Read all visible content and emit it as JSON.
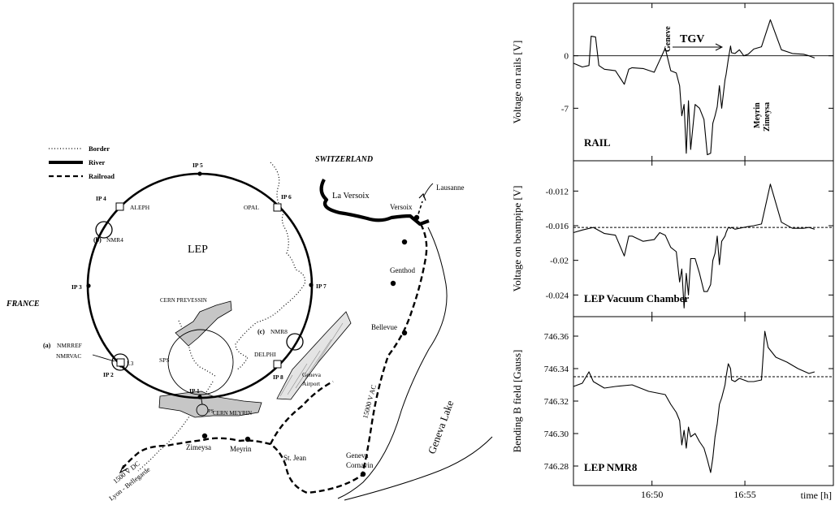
{
  "map": {
    "legend": {
      "border": "Border",
      "river": "River",
      "railroad": "Railroad"
    },
    "countries": {
      "switzerland": "SWITZERLAND",
      "france": "FRANCE"
    },
    "ring_label": "LEP",
    "interaction_points": {
      "ip1": "IP 1",
      "ip2": "IP 2",
      "ip3": "IP 3",
      "ip4": "IP 4",
      "ip5": "IP 5",
      "ip6": "IP 6",
      "ip7": "IP 7",
      "ip8": "IP 8"
    },
    "experiments": {
      "aleph": "ALEPH",
      "opal": "OPAL",
      "delphi": "DELPHI",
      "l3": "L3"
    },
    "nmr": {
      "a_tag": "(a)",
      "nmrref": "NMRREF",
      "nmrvac": "NMRVAC",
      "b_tag": "(b)",
      "nmr4": "NMR4",
      "c_tag": "(c)",
      "nmr8": "NMR8"
    },
    "sites": {
      "sps": "SPS",
      "ps": "PS",
      "cern_prevessin": "CERN PREVESSIN",
      "cern_meyrin": "CERN MEYRIN",
      "geneva_airport_1": "Geneva",
      "geneva_airport_2": "Airport"
    },
    "places": {
      "la_versoix": "La Versoix",
      "versoix": "Versoix",
      "lausanne": "Lausanne",
      "genthod": "Genthod",
      "bellevue": "Bellevue",
      "geneva_cornavin_1": "Geneva",
      "geneva_cornavin_2": "Cornavin",
      "st_jean": "St. Jean",
      "meyrin": "Meyrin",
      "zimeysa": "Zimeysa",
      "geneva_lake": "Geneva Lake"
    },
    "rail_notes": {
      "ac": "15000 V AC",
      "dc": "1500 V DC",
      "lyon": "Lyon - Bellegarde"
    }
  },
  "chart_data": {
    "type": "line",
    "xlabel": "time [h]",
    "x_ticks": [
      "16:50",
      "16:55"
    ],
    "x_range": [
      "16:45.7",
      "16:59.8"
    ],
    "panels": [
      {
        "name": "RAIL",
        "ylabel": "Voltage on rails [V]",
        "y_ticks": [
          "0",
          "-7"
        ],
        "ylim": [
          -14,
          7
        ],
        "reference_line": 0,
        "annotations": {
          "train": "TGV",
          "station_1": "Geneve",
          "station_2": "Meyrin",
          "station_3": "Zimeysa"
        },
        "x": [
          16.762,
          16.77,
          16.776,
          16.778,
          16.782,
          16.785,
          16.79,
          16.8,
          16.808,
          16.812,
          16.815,
          16.825,
          16.835,
          16.84,
          16.845,
          16.85,
          16.855,
          16.858,
          16.86,
          16.862,
          16.864,
          16.866,
          16.868,
          16.872,
          16.876,
          16.88,
          16.883,
          16.886,
          16.888,
          16.89,
          16.892,
          16.894,
          16.896,
          16.899,
          16.9,
          16.902,
          16.904,
          16.905,
          16.908,
          16.912,
          16.916,
          16.92,
          16.925,
          16.932,
          16.94,
          16.95,
          16.96,
          16.97,
          16.975,
          16.98
        ],
        "y": [
          -1.0,
          -1.5,
          -1.3,
          2.6,
          2.5,
          -1.3,
          -1.8,
          -2.0,
          -3.8,
          -1.8,
          -1.6,
          -1.7,
          -2.2,
          -0.6,
          1.0,
          -2.0,
          -2.3,
          -4.0,
          -8.0,
          -6.5,
          -13.0,
          -6.0,
          -12.5,
          -6.5,
          -7.0,
          -8.5,
          -13.2,
          -13.0,
          -9.0,
          -8.0,
          -6.8,
          -4.0,
          -7.0,
          -3.2,
          -2.5,
          -0.5,
          1.3,
          0.4,
          0.3,
          0.8,
          0.0,
          0.2,
          0.9,
          1.2,
          4.8,
          0.8,
          0.3,
          0.2,
          0.0,
          -0.3
        ]
      },
      {
        "name": "LEP Vacuum Chamber",
        "ylabel": "Voltage on beampipe [V]",
        "y_ticks": [
          "-0.012",
          "-0.016",
          "-0.02",
          "-0.024"
        ],
        "ylim": [
          -0.0265,
          -0.0085
        ],
        "reference_line": -0.0162,
        "x": [
          16.762,
          16.77,
          16.78,
          16.79,
          16.8,
          16.808,
          16.812,
          16.815,
          16.825,
          16.835,
          16.84,
          16.845,
          16.85,
          16.855,
          16.858,
          16.86,
          16.862,
          16.864,
          16.866,
          16.868,
          16.872,
          16.876,
          16.88,
          16.883,
          16.886,
          16.888,
          16.89,
          16.892,
          16.894,
          16.896,
          16.899,
          16.9,
          16.902,
          16.904,
          16.905,
          16.908,
          16.912,
          16.916,
          16.92,
          16.925,
          16.932,
          16.94,
          16.95,
          16.96,
          16.97,
          16.975,
          16.98
        ],
        "y": [
          -0.0168,
          -0.0165,
          -0.0162,
          -0.0169,
          -0.0171,
          -0.0195,
          -0.0172,
          -0.0172,
          -0.0178,
          -0.0176,
          -0.0168,
          -0.0171,
          -0.0185,
          -0.019,
          -0.0225,
          -0.021,
          -0.0255,
          -0.0215,
          -0.024,
          -0.0198,
          -0.0198,
          -0.0215,
          -0.0236,
          -0.0236,
          -0.0228,
          -0.02,
          -0.0192,
          -0.0172,
          -0.0205,
          -0.0178,
          -0.0172,
          -0.0168,
          -0.0162,
          -0.0163,
          -0.0162,
          -0.0164,
          -0.0163,
          -0.0162,
          -0.0161,
          -0.016,
          -0.0158,
          -0.0112,
          -0.0156,
          -0.0163,
          -0.0163,
          -0.0162,
          -0.0164
        ]
      },
      {
        "name": "LEP NMR8",
        "ylabel": "Bending B field [Gauss]",
        "y_ticks": [
          "746.36",
          "746.34",
          "746.32",
          "746.30",
          "746.28"
        ],
        "ylim": [
          746.268,
          746.372
        ],
        "reference_line": 746.335,
        "x": [
          16.762,
          16.77,
          16.776,
          16.78,
          16.79,
          16.8,
          16.815,
          16.83,
          16.845,
          16.85,
          16.855,
          16.858,
          16.86,
          16.862,
          16.864,
          16.866,
          16.868,
          16.872,
          16.876,
          16.88,
          16.883,
          16.886,
          16.888,
          16.89,
          16.892,
          16.894,
          16.896,
          16.899,
          16.9,
          16.902,
          16.904,
          16.905,
          16.908,
          16.912,
          16.916,
          16.92,
          16.925,
          16.932,
          16.935,
          16.938,
          16.945,
          16.955,
          16.965,
          16.975,
          16.98
        ],
        "y": [
          746.329,
          746.331,
          746.338,
          746.332,
          746.328,
          746.329,
          746.33,
          746.326,
          746.324,
          746.318,
          746.313,
          746.308,
          746.293,
          746.302,
          746.291,
          746.304,
          746.298,
          746.3,
          746.295,
          746.291,
          746.284,
          746.276,
          746.285,
          746.298,
          746.306,
          746.318,
          746.322,
          746.33,
          746.335,
          746.343,
          746.34,
          746.333,
          746.332,
          746.334,
          746.333,
          746.332,
          746.332,
          746.333,
          746.363,
          746.353,
          746.347,
          746.344,
          746.34,
          746.337,
          746.338
        ]
      }
    ]
  }
}
